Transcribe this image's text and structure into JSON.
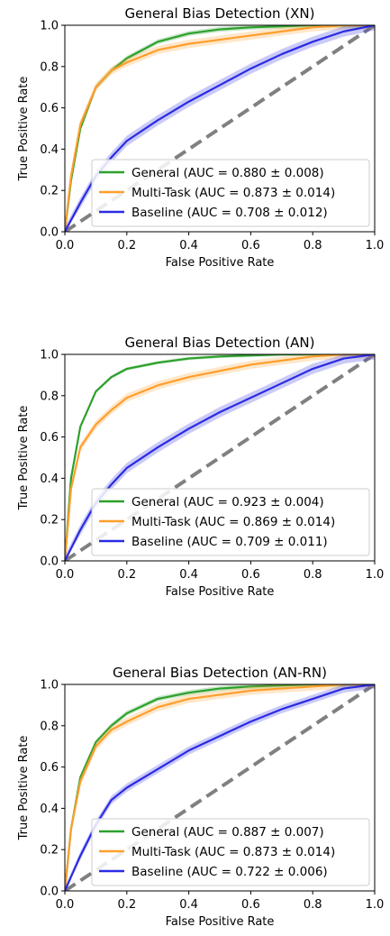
{
  "chart_data": [
    {
      "type": "line",
      "title": "General Bias Detection (XN)",
      "xlabel": "False Positive Rate",
      "ylabel": "True Positive Rate",
      "xlim": [
        0,
        1
      ],
      "ylim": [
        0,
        1
      ],
      "xticks": [
        "0.0",
        "0.2",
        "0.4",
        "0.6",
        "0.8",
        "1.0"
      ],
      "yticks": [
        "0.0",
        "0.2",
        "0.4",
        "0.6",
        "0.8",
        "1.0"
      ],
      "legend_position": "lower-right",
      "diagonal_reference": true,
      "series": [
        {
          "name": "General (AUC = 0.880 ± 0.008)",
          "color": "#2ca02c",
          "band": 0.012,
          "x": [
            0,
            0.02,
            0.05,
            0.1,
            0.15,
            0.2,
            0.3,
            0.4,
            0.5,
            0.6,
            0.7,
            0.8,
            0.9,
            1.0
          ],
          "y": [
            0,
            0.25,
            0.5,
            0.7,
            0.78,
            0.84,
            0.92,
            0.96,
            0.98,
            0.99,
            0.995,
            1.0,
            1.0,
            1.0
          ]
        },
        {
          "name": "Multi-Task (AUC = 0.873 ± 0.014)",
          "color": "#ff9e2c",
          "band": 0.02,
          "x": [
            0,
            0.02,
            0.05,
            0.1,
            0.15,
            0.2,
            0.3,
            0.4,
            0.5,
            0.6,
            0.7,
            0.8,
            0.9,
            1.0
          ],
          "y": [
            0,
            0.27,
            0.52,
            0.7,
            0.78,
            0.82,
            0.88,
            0.91,
            0.93,
            0.95,
            0.97,
            0.99,
            1.0,
            1.0
          ]
        },
        {
          "name": "Baseline (AUC = 0.708 ± 0.012)",
          "color": "#2b2be3",
          "band": 0.025,
          "x": [
            0,
            0.05,
            0.1,
            0.15,
            0.2,
            0.3,
            0.4,
            0.5,
            0.6,
            0.7,
            0.8,
            0.9,
            1.0
          ],
          "y": [
            0,
            0.14,
            0.27,
            0.36,
            0.44,
            0.54,
            0.63,
            0.71,
            0.79,
            0.86,
            0.92,
            0.97,
            1.0
          ]
        }
      ]
    },
    {
      "type": "line",
      "title": "General Bias Detection (AN)",
      "xlabel": "False Positive Rate",
      "ylabel": "True Positive Rate",
      "xlim": [
        0,
        1
      ],
      "ylim": [
        0,
        1
      ],
      "xticks": [
        "0.0",
        "0.2",
        "0.4",
        "0.6",
        "0.8",
        "1.0"
      ],
      "yticks": [
        "0.0",
        "0.2",
        "0.4",
        "0.6",
        "0.8",
        "1.0"
      ],
      "legend_position": "lower-right",
      "diagonal_reference": true,
      "series": [
        {
          "name": "General (AUC = 0.923 ± 0.004)",
          "color": "#2ca02c",
          "band": 0.008,
          "x": [
            0,
            0.02,
            0.05,
            0.1,
            0.15,
            0.2,
            0.3,
            0.4,
            0.5,
            0.6,
            0.7,
            0.8,
            0.9,
            1.0
          ],
          "y": [
            0,
            0.4,
            0.65,
            0.82,
            0.89,
            0.93,
            0.96,
            0.98,
            0.99,
            0.995,
            1.0,
            1.0,
            1.0,
            1.0
          ]
        },
        {
          "name": "Multi-Task (AUC = 0.869 ± 0.014)",
          "color": "#ff9e2c",
          "band": 0.02,
          "x": [
            0,
            0.02,
            0.05,
            0.1,
            0.15,
            0.2,
            0.3,
            0.4,
            0.5,
            0.6,
            0.7,
            0.8,
            0.9,
            1.0
          ],
          "y": [
            0,
            0.35,
            0.55,
            0.66,
            0.73,
            0.79,
            0.85,
            0.89,
            0.92,
            0.95,
            0.97,
            0.99,
            1.0,
            1.0
          ]
        },
        {
          "name": "Baseline (AUC = 0.709 ± 0.011)",
          "color": "#2b2be3",
          "band": 0.025,
          "x": [
            0,
            0.05,
            0.1,
            0.15,
            0.2,
            0.3,
            0.4,
            0.5,
            0.6,
            0.7,
            0.8,
            0.9,
            1.0
          ],
          "y": [
            0,
            0.15,
            0.28,
            0.37,
            0.45,
            0.55,
            0.64,
            0.72,
            0.79,
            0.86,
            0.93,
            0.98,
            1.0
          ]
        }
      ]
    },
    {
      "type": "line",
      "title": "General Bias Detection (AN-RN)",
      "xlabel": "False Positive Rate",
      "ylabel": "True Positive Rate",
      "xlim": [
        0,
        1
      ],
      "ylim": [
        0,
        1
      ],
      "xticks": [
        "0.0",
        "0.2",
        "0.4",
        "0.6",
        "0.8",
        "1.0"
      ],
      "yticks": [
        "0.0",
        "0.2",
        "0.4",
        "0.6",
        "0.8",
        "1.0"
      ],
      "legend_position": "lower-right",
      "diagonal_reference": true,
      "series": [
        {
          "name": "General (AUC = 0.887 ± 0.007)",
          "color": "#2ca02c",
          "band": 0.012,
          "x": [
            0,
            0.02,
            0.05,
            0.1,
            0.15,
            0.2,
            0.3,
            0.4,
            0.5,
            0.6,
            0.7,
            0.8,
            0.9,
            1.0
          ],
          "y": [
            0,
            0.3,
            0.55,
            0.72,
            0.8,
            0.86,
            0.93,
            0.96,
            0.98,
            0.99,
            0.995,
            1.0,
            1.0,
            1.0
          ]
        },
        {
          "name": "Multi-Task (AUC = 0.873 ± 0.014)",
          "color": "#ff9e2c",
          "band": 0.02,
          "x": [
            0,
            0.02,
            0.05,
            0.1,
            0.15,
            0.2,
            0.3,
            0.4,
            0.5,
            0.6,
            0.7,
            0.8,
            0.9,
            1.0
          ],
          "y": [
            0,
            0.3,
            0.53,
            0.7,
            0.78,
            0.82,
            0.89,
            0.93,
            0.95,
            0.97,
            0.98,
            0.99,
            1.0,
            1.0
          ]
        },
        {
          "name": "Baseline (AUC = 0.722 ± 0.006)",
          "color": "#2b2be3",
          "band": 0.02,
          "x": [
            0,
            0.05,
            0.1,
            0.15,
            0.2,
            0.3,
            0.4,
            0.5,
            0.6,
            0.7,
            0.8,
            0.9,
            1.0
          ],
          "y": [
            0,
            0.17,
            0.32,
            0.44,
            0.5,
            0.59,
            0.68,
            0.75,
            0.82,
            0.88,
            0.93,
            0.98,
            1.0
          ]
        }
      ]
    }
  ]
}
